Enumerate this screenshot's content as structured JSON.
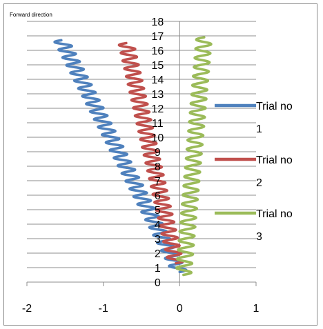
{
  "chart_data": {
    "type": "line",
    "title": "",
    "corner_label": "Forward direction",
    "xlabel": "",
    "ylabel": "",
    "xlim": [
      -2,
      1
    ],
    "ylim": [
      0,
      18
    ],
    "x_ticks": [
      -2,
      -1,
      0,
      1
    ],
    "y_ticks": [
      0,
      1,
      2,
      3,
      4,
      5,
      6,
      7,
      8,
      9,
      10,
      11,
      12,
      13,
      14,
      15,
      16,
      17,
      18
    ],
    "grid": "horizontal",
    "legend_position": "right",
    "series": [
      {
        "name": "Trial no 1",
        "color": "#4F81BD",
        "x_start": 0.0,
        "x_end": -1.55,
        "y_start": 0.7,
        "y_end": 16.7,
        "wiggle_amplitude": 0.1,
        "wiggle_cycles": 30
      },
      {
        "name": "Trial no 2",
        "color": "#C0504D",
        "x_start": -0.05,
        "x_end": -0.7,
        "y_start": 1.3,
        "y_end": 16.5,
        "wiggle_amplitude": 0.1,
        "wiggle_cycles": 28
      },
      {
        "name": "Trial no 3",
        "color": "#9BBB59",
        "x_start": 0.05,
        "x_end": 0.32,
        "y_start": 0.5,
        "y_end": 16.9,
        "wiggle_amplitude": 0.1,
        "wiggle_cycles": 26
      }
    ],
    "legend": [
      {
        "line1": "Trial no",
        "line2": "1",
        "color": "#4F81BD"
      },
      {
        "line1": "Trial no",
        "line2": "2",
        "color": "#C0504D"
      },
      {
        "line1": "Trial no",
        "line2": "3",
        "color": "#9BBB59"
      }
    ]
  }
}
